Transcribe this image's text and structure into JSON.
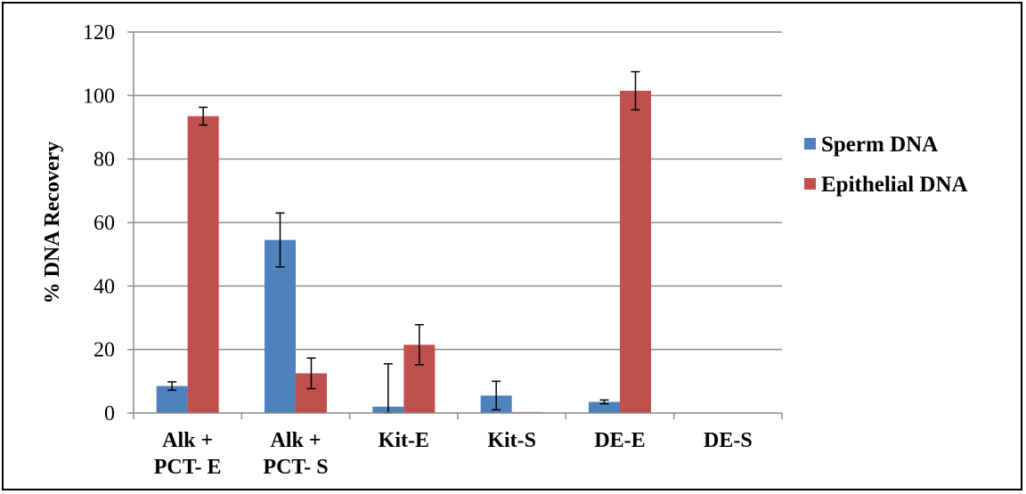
{
  "chart_data": {
    "type": "bar",
    "categories": [
      "Alk +\nPCT- E",
      "Alk +\nPCT- S",
      "Kit-E",
      "Kit-S",
      "DE-E",
      "DE-S"
    ],
    "series": [
      {
        "name": "Sperm DNA",
        "color": "#4f81bd",
        "values": [
          8.5,
          54.5,
          2,
          5.5,
          3.5,
          0
        ],
        "errors": [
          1.3,
          8.5,
          13.5,
          4.5,
          0.6,
          0
        ]
      },
      {
        "name": "Epithelial DNA",
        "color": "#c0504d",
        "values": [
          93.5,
          12.5,
          21.5,
          0.3,
          101.5,
          0
        ],
        "errors": [
          2.8,
          4.8,
          6.3,
          0,
          6.0,
          0
        ]
      }
    ],
    "ylabel": "% DNA Recovery",
    "ylim": [
      0,
      120
    ],
    "yticks": [
      0,
      20,
      40,
      60,
      80,
      100,
      120
    ],
    "grid": true,
    "legend_position": "right"
  }
}
